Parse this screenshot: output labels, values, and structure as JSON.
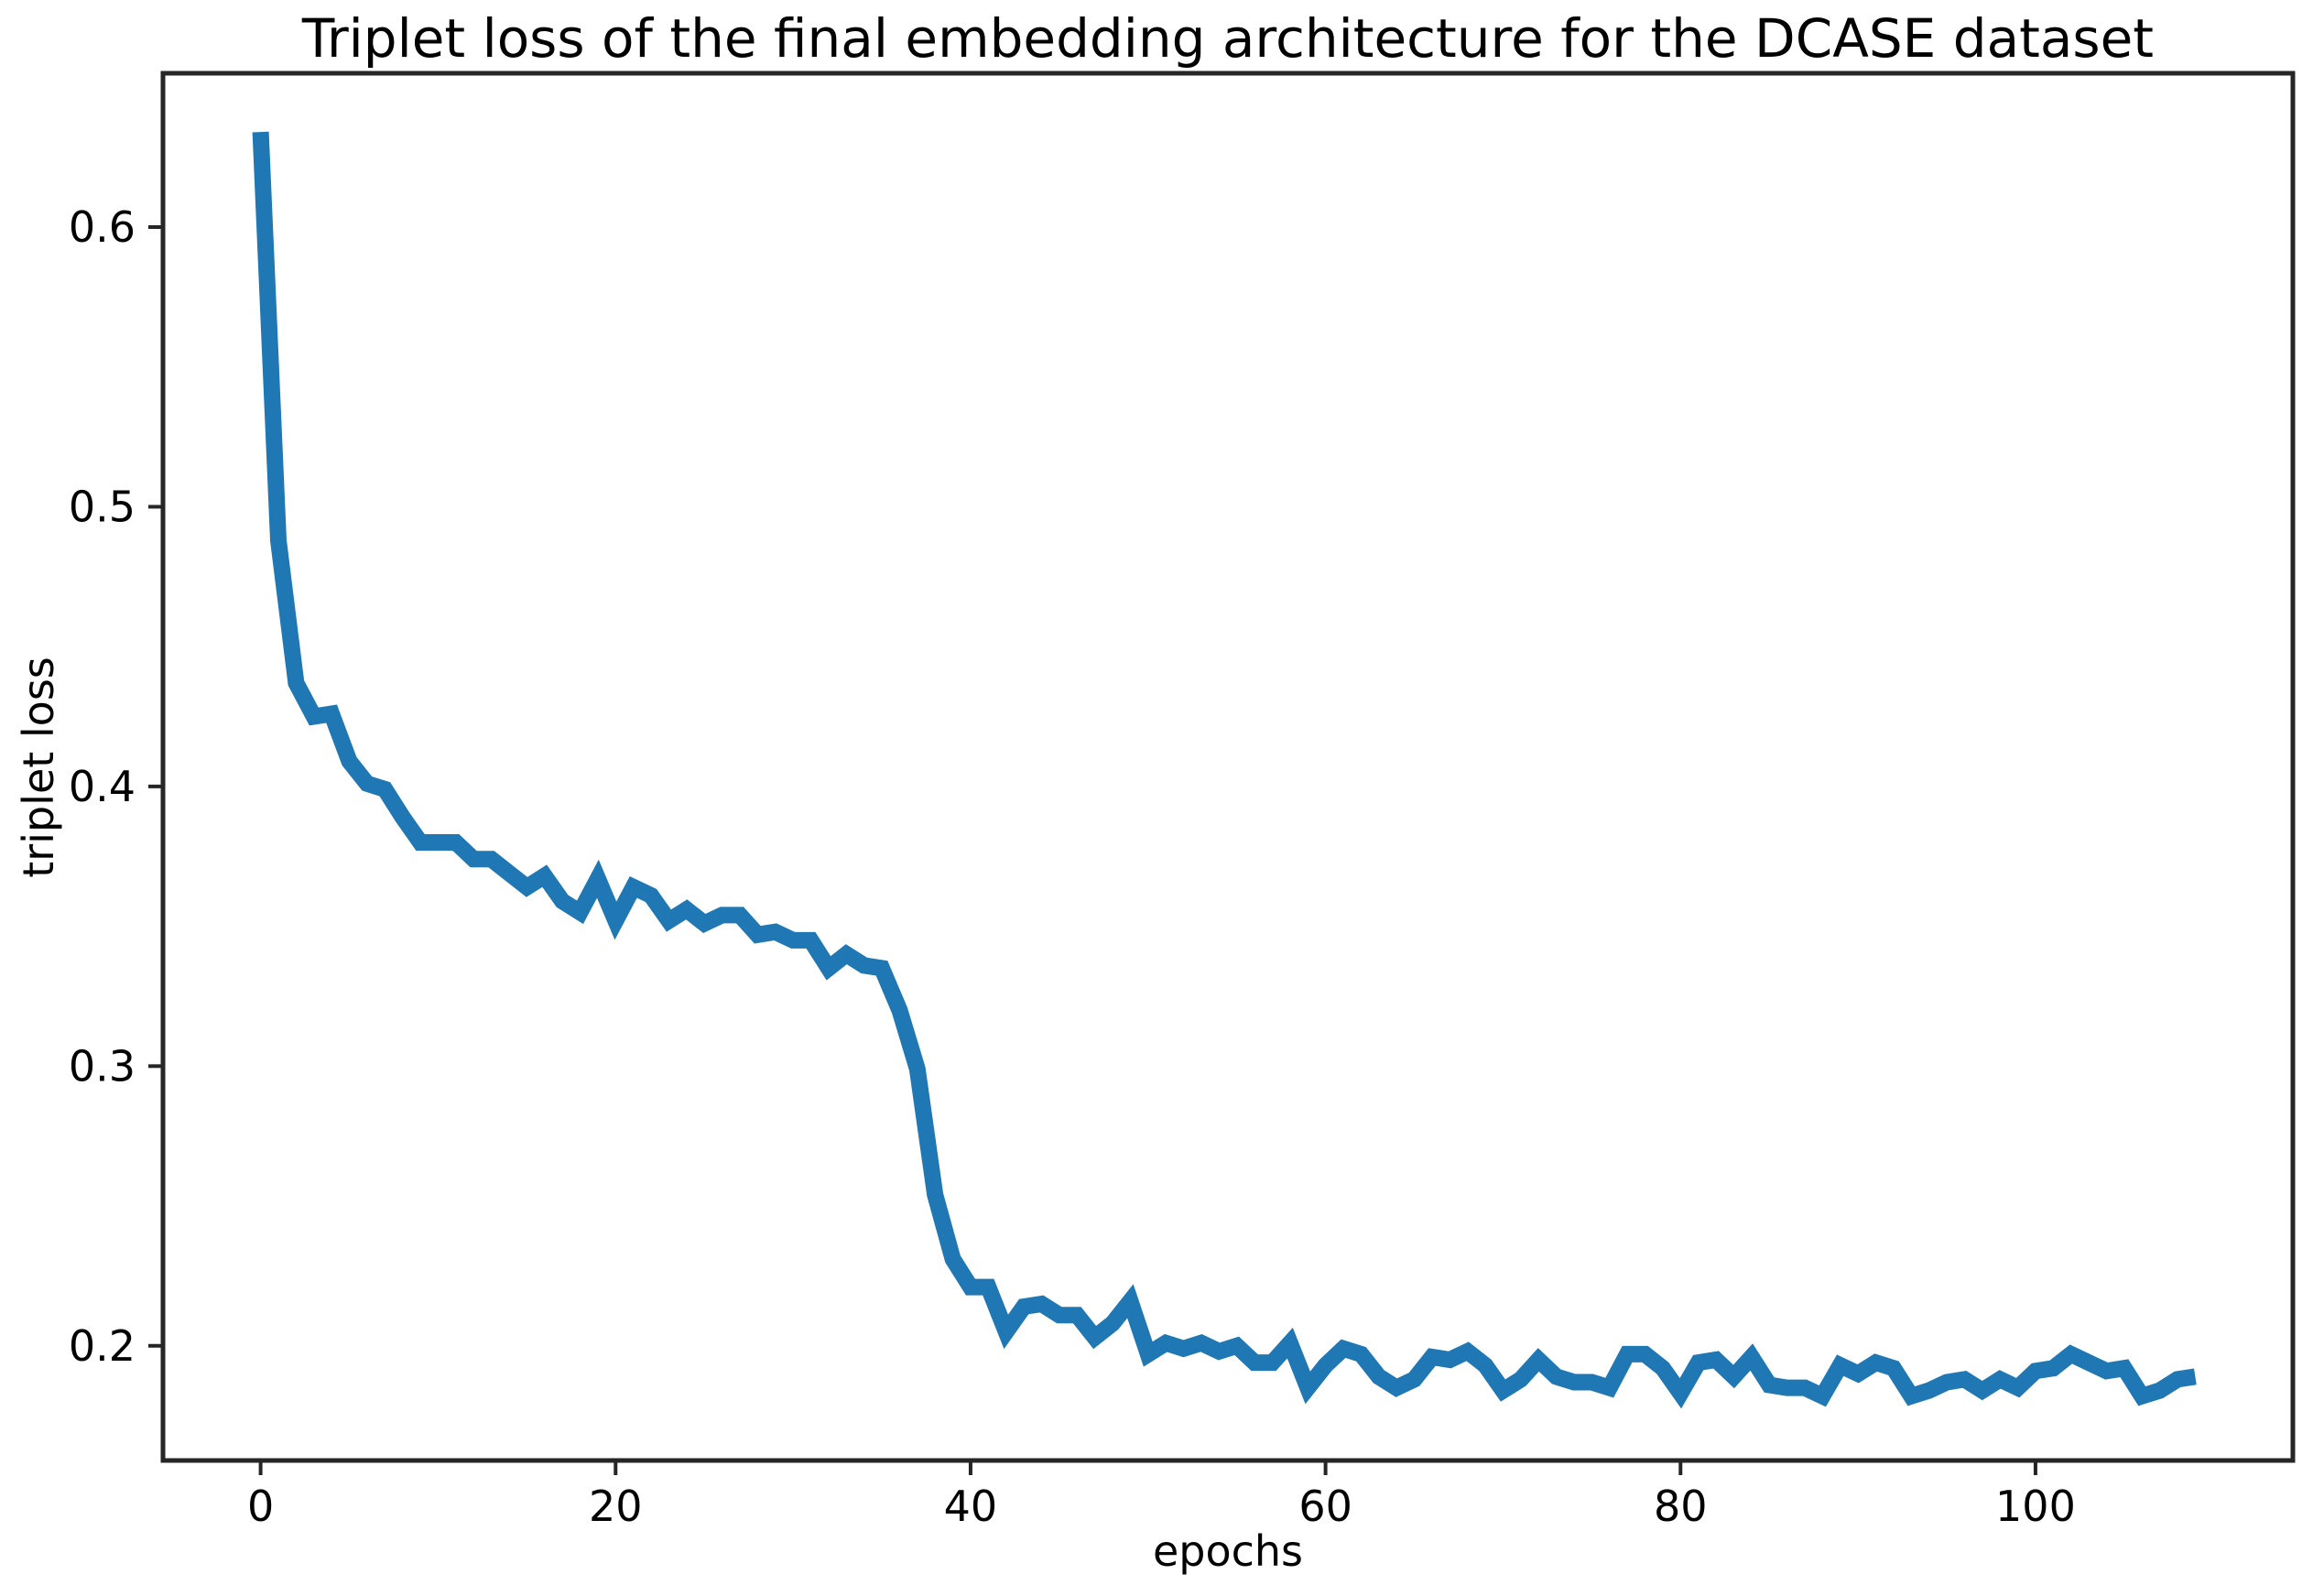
{
  "chart_data": {
    "type": "line",
    "title": "Triplet loss of the final embedding architecture for the DCASE dataset",
    "xlabel": "epochs",
    "ylabel": "triplet loss",
    "xlim": [
      -5.5,
      114.5
    ],
    "ylim": [
      0.159,
      0.655
    ],
    "xticks": [
      0,
      20,
      40,
      60,
      80,
      100
    ],
    "yticks": [
      0.2,
      0.3,
      0.4,
      0.5,
      0.6
    ],
    "xtick_labels": [
      "0",
      "20",
      "40",
      "60",
      "80",
      "100"
    ],
    "ytick_labels": [
      "0.2",
      "0.3",
      "0.4",
      "0.5",
      "0.6"
    ],
    "grid": false,
    "legend": null,
    "line_color": "#1f77b4",
    "series": [
      {
        "x": [
          0,
          1,
          2,
          3,
          4,
          5,
          6,
          7,
          8,
          9,
          10,
          11,
          12,
          13,
          14,
          15,
          16,
          17,
          18,
          19,
          20,
          21,
          22,
          23,
          24,
          25,
          26,
          27,
          28,
          29,
          30,
          31,
          32,
          33,
          34,
          35,
          36,
          37,
          38,
          39,
          40,
          41,
          42,
          43,
          44,
          45,
          46,
          47,
          48,
          49,
          50,
          51,
          52,
          53,
          54,
          55,
          56,
          57,
          58,
          59,
          60,
          61,
          62,
          63,
          64,
          65,
          66,
          67,
          68,
          69,
          70,
          71,
          72,
          73,
          74,
          75,
          76,
          77,
          78,
          79,
          80,
          81,
          82,
          83,
          84,
          85,
          86,
          87,
          88,
          89,
          90,
          91,
          92,
          93,
          94,
          95,
          96,
          97,
          98,
          99,
          100,
          101,
          102,
          103,
          104,
          105,
          106,
          107,
          108,
          109
        ],
        "values": [
          0.634,
          0.488,
          0.437,
          0.425,
          0.426,
          0.409,
          0.401,
          0.399,
          0.389,
          0.38,
          0.38,
          0.38,
          0.374,
          0.374,
          0.369,
          0.364,
          0.368,
          0.359,
          0.355,
          0.367,
          0.352,
          0.364,
          0.361,
          0.352,
          0.356,
          0.351,
          0.354,
          0.354,
          0.347,
          0.348,
          0.345,
          0.345,
          0.335,
          0.34,
          0.336,
          0.335,
          0.32,
          0.299,
          0.254,
          0.231,
          0.221,
          0.221,
          0.205,
          0.214,
          0.215,
          0.211,
          0.211,
          0.203,
          0.208,
          0.216,
          0.197,
          0.201,
          0.199,
          0.201,
          0.198,
          0.2,
          0.194,
          0.194,
          0.201,
          0.185,
          0.193,
          0.199,
          0.197,
          0.189,
          0.185,
          0.188,
          0.196,
          0.195,
          0.198,
          0.193,
          0.184,
          0.188,
          0.195,
          0.189,
          0.187,
          0.187,
          0.185,
          0.197,
          0.197,
          0.192,
          0.183,
          0.194,
          0.195,
          0.189,
          0.196,
          0.186,
          0.185,
          0.185,
          0.182,
          0.193,
          0.19,
          0.194,
          0.192,
          0.182,
          0.184,
          0.187,
          0.188,
          0.184,
          0.188,
          0.185,
          0.191,
          0.192,
          0.197,
          0.194,
          0.191,
          0.192,
          0.182,
          0.184,
          0.188,
          0.189
        ]
      }
    ]
  }
}
